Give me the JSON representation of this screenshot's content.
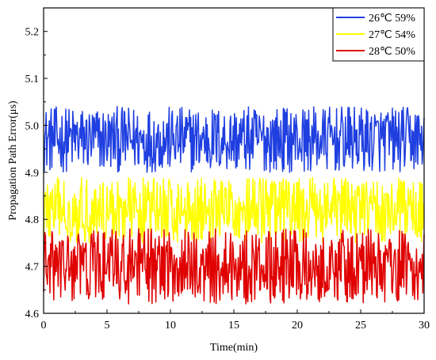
{
  "chart_data": {
    "type": "line",
    "title": "",
    "xlabel": "Time(min)",
    "ylabel": "Propagation Path Error(μs)",
    "xlim": [
      0,
      30
    ],
    "ylim": [
      4.6,
      5.25
    ],
    "xticks": [
      "0",
      "5",
      "10",
      "15",
      "20",
      "25",
      "30"
    ],
    "yticks": [
      "4.6",
      "4.7",
      "4.8",
      "4.9",
      "5.0",
      "5.1",
      "5.2"
    ],
    "grid": false,
    "legend_position": "top-right",
    "series": [
      {
        "name": "26℃ 59%",
        "color": "#1f3fe0",
        "center": 4.97,
        "band": [
          4.9,
          5.04
        ]
      },
      {
        "name": "27℃ 54%",
        "color": "#ffff00",
        "center": 4.82,
        "band": [
          4.75,
          4.89
        ]
      },
      {
        "name": "28℃ 50%",
        "color": "#e00000",
        "center": 4.7,
        "band": [
          4.62,
          4.78
        ]
      }
    ],
    "sample_interval_min": 0.05
  }
}
